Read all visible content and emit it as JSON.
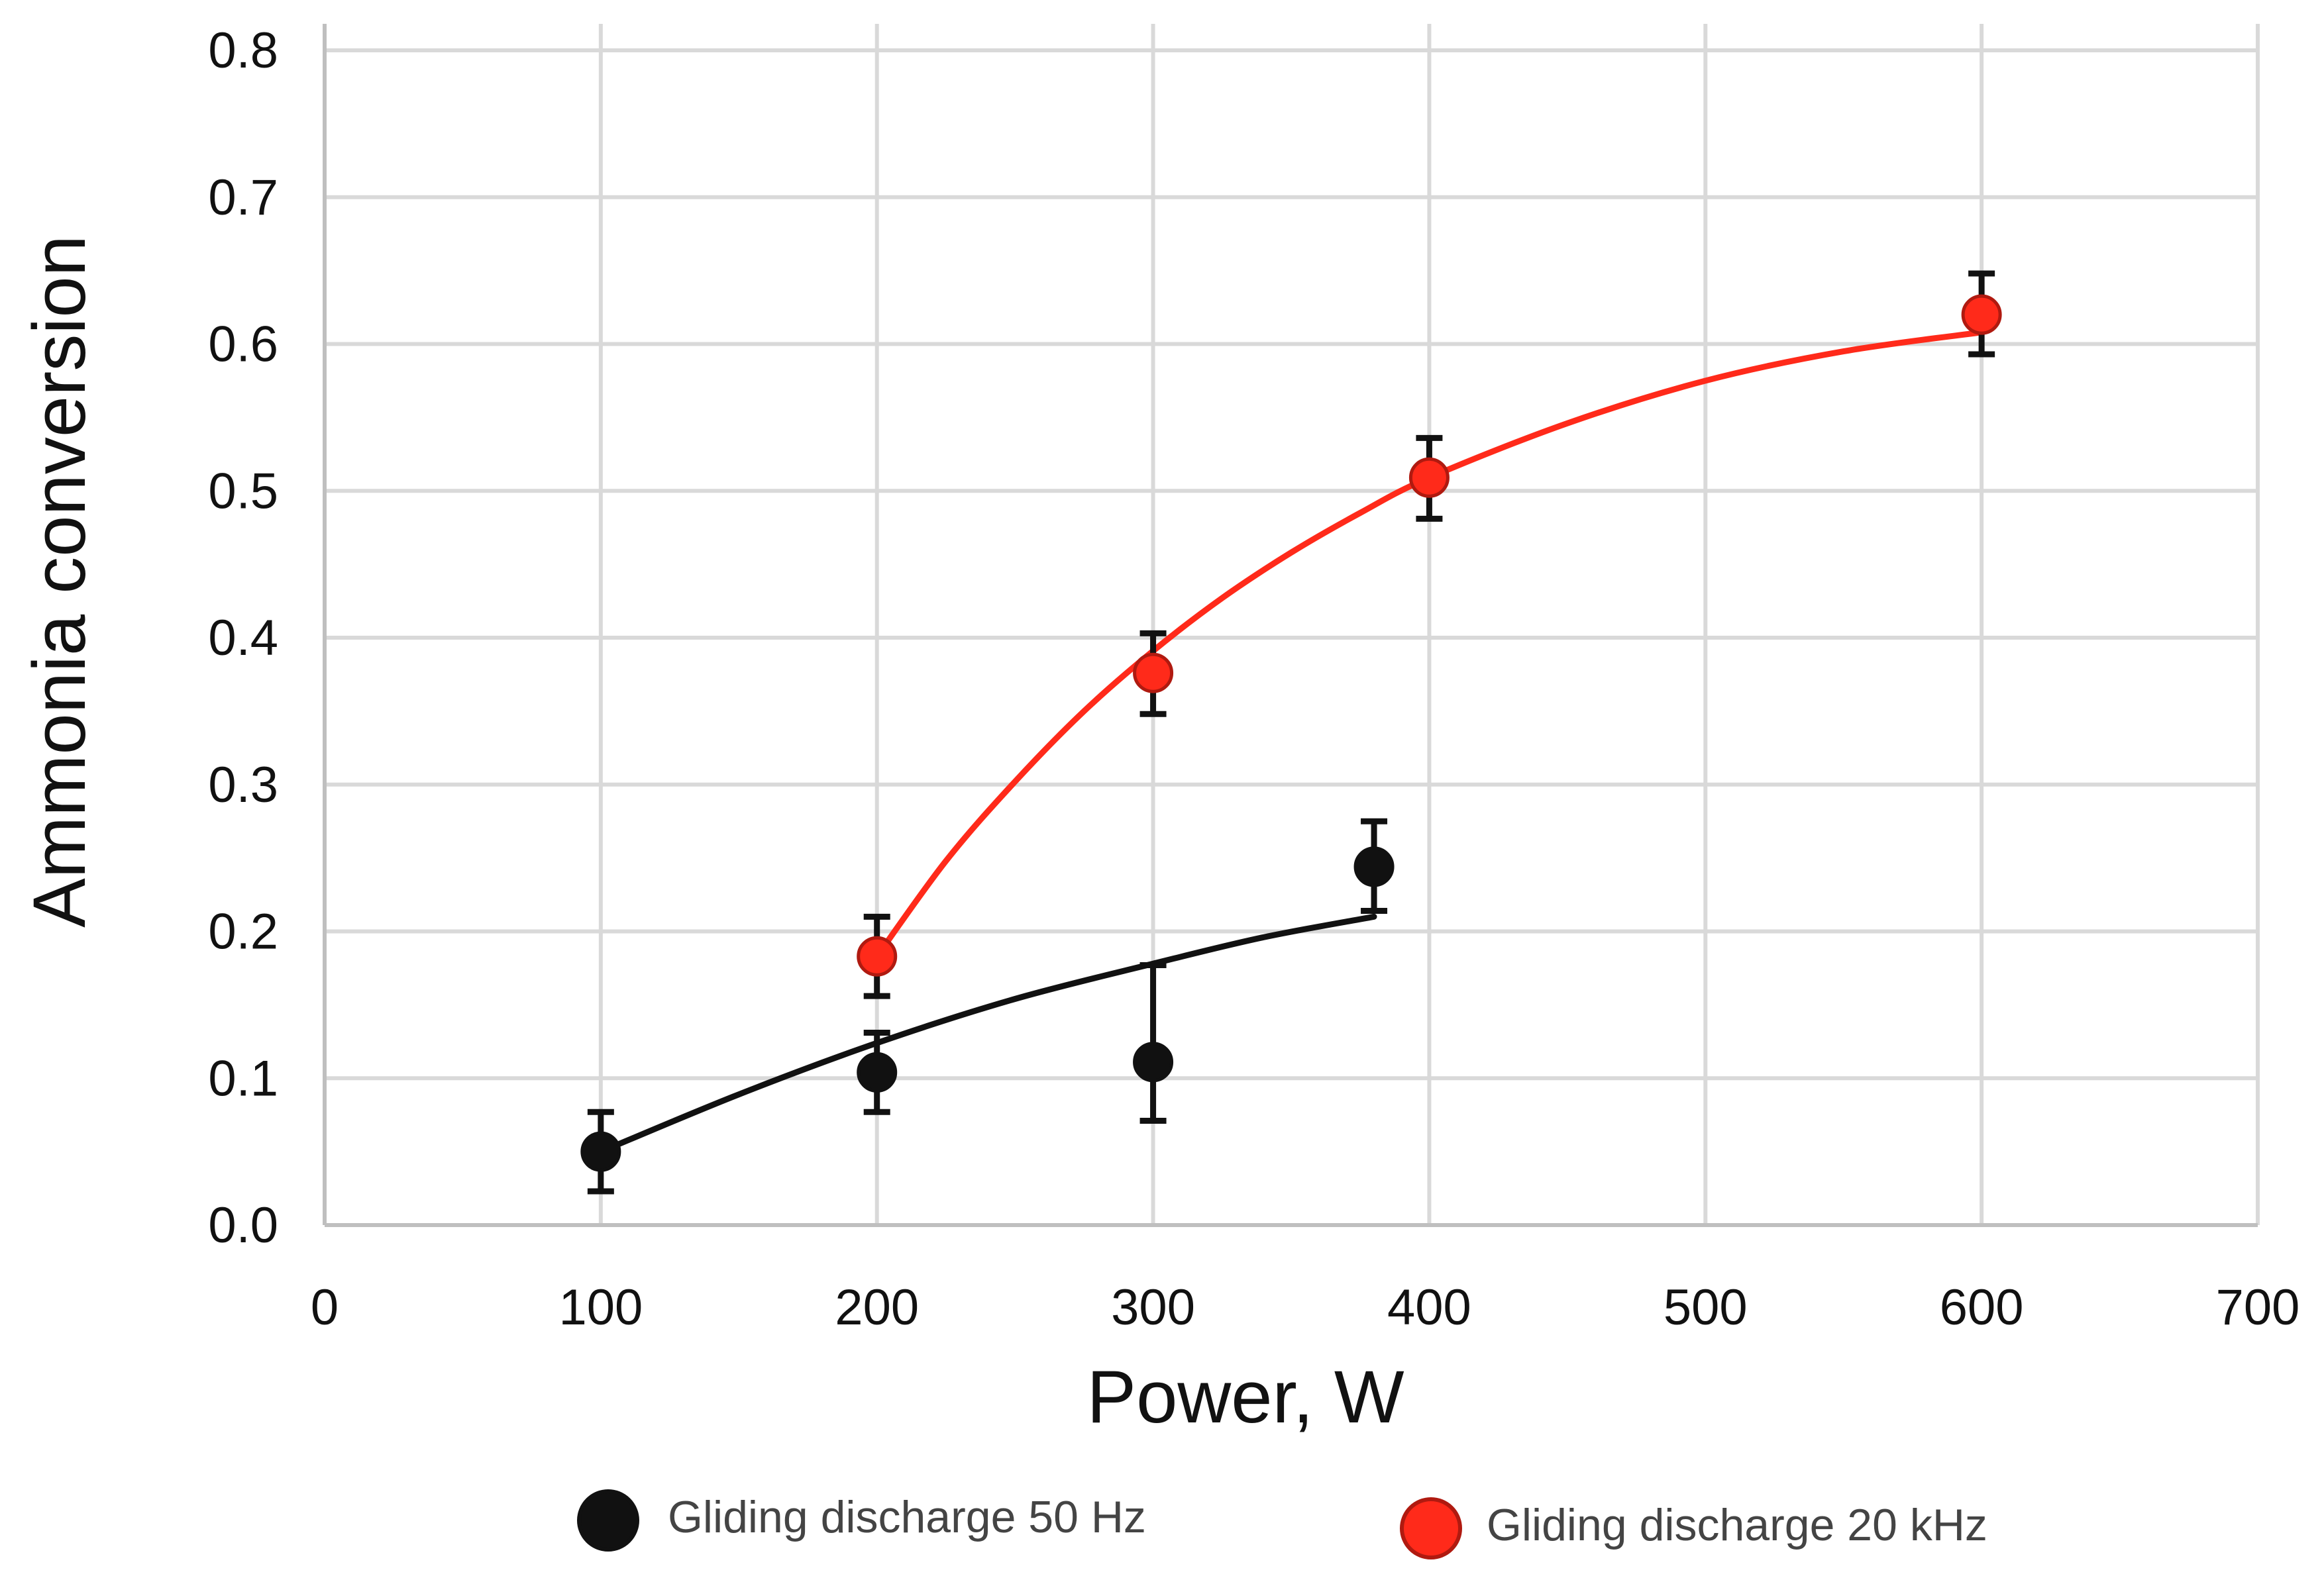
{
  "chart_data": {
    "type": "scatter",
    "title": "",
    "xlabel": "Power, W",
    "ylabel": "Ammonia conversion",
    "xlim": [
      0,
      700
    ],
    "ylim": [
      0,
      0.8
    ],
    "grid": true,
    "x_ticks": [
      {
        "value": 0,
        "label": "0"
      },
      {
        "value": 100,
        "label": "100"
      },
      {
        "value": 200,
        "label": "200"
      },
      {
        "value": 300,
        "label": "300"
      },
      {
        "value": 400,
        "label": "400"
      },
      {
        "value": 500,
        "label": "500"
      },
      {
        "value": 600,
        "label": "600"
      },
      {
        "value": 700,
        "label": "700"
      }
    ],
    "y_ticks": [
      {
        "value": 0.0,
        "label": "0.0"
      },
      {
        "value": 0.1,
        "label": "0.1"
      },
      {
        "value": 0.2,
        "label": "0.2"
      },
      {
        "value": 0.3,
        "label": "0.3"
      },
      {
        "value": 0.4,
        "label": "0.4"
      },
      {
        "value": 0.5,
        "label": "0.5"
      },
      {
        "value": 0.6,
        "label": "0.6"
      },
      {
        "value": 0.7,
        "label": "0.7"
      },
      {
        "value": 0.8,
        "label": "0.8"
      }
    ],
    "legend_position": "bottom",
    "series": [
      {
        "name": "Gliding discharge 50 Hz",
        "color": "#111111",
        "marker_stroke": "#111111",
        "points": [
          {
            "x": 100,
            "y": 0.05,
            "err_low": 0.027,
            "err_high": 0.027
          },
          {
            "x": 200,
            "y": 0.104,
            "err_low": 0.027,
            "err_high": 0.027
          },
          {
            "x": 300,
            "y": 0.111,
            "err_low": 0.04,
            "err_high": 0.066
          },
          {
            "x": 380,
            "y": 0.244,
            "err_low": 0.03,
            "err_high": 0.031
          }
        ],
        "trend": [
          [
            100,
            0.05
          ],
          [
            150,
            0.089
          ],
          [
            200,
            0.124
          ],
          [
            250,
            0.154
          ],
          [
            300,
            0.178
          ],
          [
            340,
            0.196
          ],
          [
            380,
            0.21
          ]
        ]
      },
      {
        "name": "Gliding discharge 20 kHz",
        "color": "#ff2a1a",
        "marker_stroke": "#b01a10",
        "points": [
          {
            "x": 200,
            "y": 0.183,
            "err_low": 0.027,
            "err_high": 0.027
          },
          {
            "x": 300,
            "y": 0.376,
            "err_low": 0.028,
            "err_high": 0.027
          },
          {
            "x": 400,
            "y": 0.509,
            "err_low": 0.028,
            "err_high": 0.027
          },
          {
            "x": 600,
            "y": 0.62,
            "err_low": 0.027,
            "err_high": 0.028
          }
        ],
        "trend": [
          [
            200,
            0.183
          ],
          [
            225,
            0.248
          ],
          [
            250,
            0.302
          ],
          [
            275,
            0.35
          ],
          [
            300,
            0.391
          ],
          [
            325,
            0.427
          ],
          [
            350,
            0.458
          ],
          [
            375,
            0.485
          ],
          [
            400,
            0.509
          ],
          [
            450,
            0.546
          ],
          [
            500,
            0.575
          ],
          [
            550,
            0.595
          ],
          [
            600,
            0.608
          ]
        ]
      }
    ]
  }
}
